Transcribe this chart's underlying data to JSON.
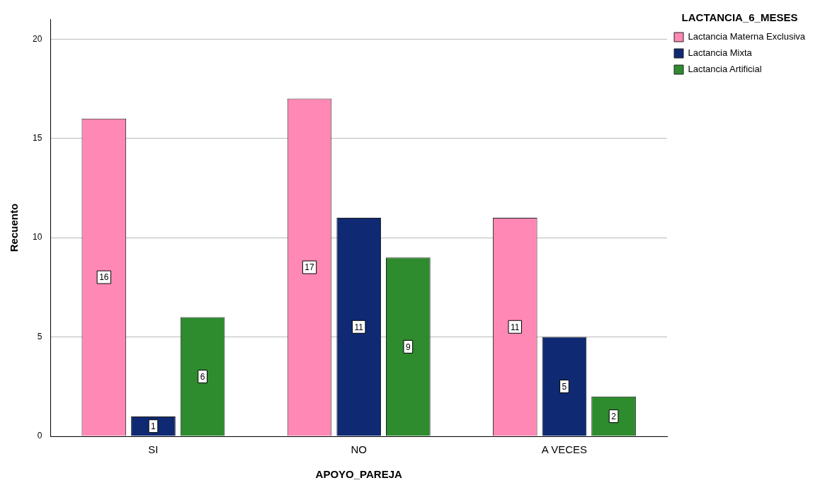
{
  "chart_data": {
    "type": "bar",
    "xlabel": "APOYO_PAREJA",
    "ylabel": "Recuento",
    "legend_title": "LACTANCIA_6_MESES",
    "categories": [
      "SI",
      "NO",
      "A VECES"
    ],
    "series": [
      {
        "name": "Lactancia Materna Exclusiva",
        "color": "#ff88b4",
        "values": [
          16,
          17,
          11
        ]
      },
      {
        "name": "Lactancia Mixta",
        "color": "#0f2a73",
        "values": [
          1,
          11,
          5
        ]
      },
      {
        "name": "Lactancia Artificial",
        "color": "#2e8b2e",
        "values": [
          6,
          9,
          2
        ]
      }
    ],
    "ylim": [
      0,
      21
    ],
    "yticks": [
      0,
      5,
      10,
      15,
      20
    ],
    "grid": "y",
    "legend": "top right",
    "data_labels": true
  }
}
